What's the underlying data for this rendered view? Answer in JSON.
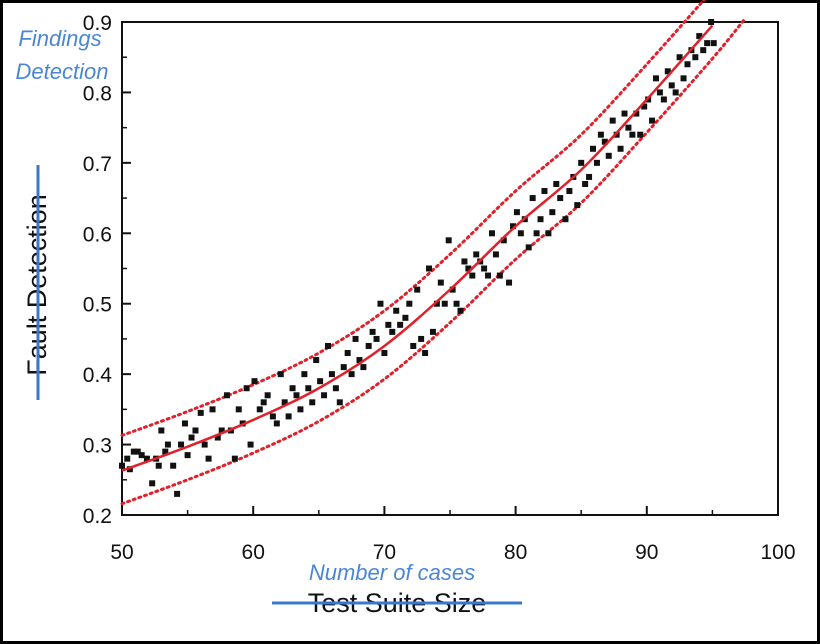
{
  "chart_data": {
    "type": "scatter",
    "xlabel": "Test Suite Size",
    "ylabel": "Fault Detection",
    "xlabel_annotation": "Number of cases",
    "ylabel_annotation": [
      "Findings",
      "Detection"
    ],
    "xlim": [
      50,
      100
    ],
    "ylim": [
      0.2,
      0.9
    ],
    "x_ticks": [
      "50",
      "60",
      "70",
      "80",
      "90",
      "100"
    ],
    "y_ticks": [
      "0.2",
      "0.3",
      "0.4",
      "0.5",
      "0.6",
      "0.7",
      "0.8",
      "0.9"
    ],
    "grid": false,
    "colors": {
      "points": "#111111",
      "fit": "#e0202a",
      "band": "#e0202a",
      "annotation": "#4a86d8",
      "strike": "#3a78d0"
    },
    "fit_curve": {
      "x": [
        50,
        55,
        60,
        65,
        70,
        75,
        80,
        85,
        90,
        95
      ],
      "y": [
        0.263,
        0.297,
        0.335,
        0.38,
        0.44,
        0.52,
        0.61,
        0.69,
        0.79,
        0.895
      ]
    },
    "upper_band": {
      "x": [
        50,
        55,
        60,
        65,
        70,
        75,
        80,
        85,
        90,
        95
      ],
      "y": [
        0.313,
        0.347,
        0.385,
        0.43,
        0.49,
        0.57,
        0.66,
        0.74,
        0.84,
        0.945
      ]
    },
    "lower_band": {
      "x": [
        50,
        55,
        60,
        65,
        70,
        75,
        80,
        85,
        90,
        95,
        97.5
      ],
      "y": [
        0.216,
        0.25,
        0.288,
        0.333,
        0.393,
        0.473,
        0.563,
        0.643,
        0.743,
        0.848,
        0.905
      ]
    },
    "points": [
      [
        50.0,
        0.27
      ],
      [
        50.4,
        0.28
      ],
      [
        50.6,
        0.265
      ],
      [
        50.9,
        0.29
      ],
      [
        51.2,
        0.29
      ],
      [
        51.5,
        0.285
      ],
      [
        51.9,
        0.28
      ],
      [
        52.3,
        0.245
      ],
      [
        52.6,
        0.28
      ],
      [
        52.8,
        0.27
      ],
      [
        53.0,
        0.32
      ],
      [
        53.3,
        0.29
      ],
      [
        53.5,
        0.3
      ],
      [
        53.9,
        0.27
      ],
      [
        54.2,
        0.23
      ],
      [
        54.5,
        0.3
      ],
      [
        54.8,
        0.33
      ],
      [
        55.0,
        0.285
      ],
      [
        55.3,
        0.31
      ],
      [
        55.6,
        0.32
      ],
      [
        56.0,
        0.345
      ],
      [
        56.3,
        0.3
      ],
      [
        56.6,
        0.28
      ],
      [
        56.9,
        0.35
      ],
      [
        57.3,
        0.31
      ],
      [
        57.6,
        0.32
      ],
      [
        58.0,
        0.37
      ],
      [
        58.3,
        0.32
      ],
      [
        58.6,
        0.28
      ],
      [
        58.9,
        0.35
      ],
      [
        59.2,
        0.33
      ],
      [
        59.5,
        0.38
      ],
      [
        59.8,
        0.3
      ],
      [
        60.1,
        0.39
      ],
      [
        60.5,
        0.35
      ],
      [
        60.8,
        0.36
      ],
      [
        61.1,
        0.37
      ],
      [
        61.5,
        0.34
      ],
      [
        61.8,
        0.33
      ],
      [
        62.1,
        0.4
      ],
      [
        62.4,
        0.36
      ],
      [
        62.7,
        0.34
      ],
      [
        63.0,
        0.38
      ],
      [
        63.3,
        0.37
      ],
      [
        63.6,
        0.35
      ],
      [
        63.9,
        0.4
      ],
      [
        64.2,
        0.38
      ],
      [
        64.5,
        0.36
      ],
      [
        64.8,
        0.42
      ],
      [
        65.1,
        0.39
      ],
      [
        65.4,
        0.37
      ],
      [
        65.7,
        0.44
      ],
      [
        66.0,
        0.4
      ],
      [
        66.3,
        0.38
      ],
      [
        66.6,
        0.36
      ],
      [
        66.9,
        0.41
      ],
      [
        67.2,
        0.43
      ],
      [
        67.5,
        0.4
      ],
      [
        67.8,
        0.45
      ],
      [
        68.1,
        0.42
      ],
      [
        68.4,
        0.41
      ],
      [
        68.8,
        0.44
      ],
      [
        69.1,
        0.46
      ],
      [
        69.4,
        0.45
      ],
      [
        69.7,
        0.5
      ],
      [
        70.0,
        0.43
      ],
      [
        70.3,
        0.47
      ],
      [
        70.6,
        0.46
      ],
      [
        70.9,
        0.49
      ],
      [
        71.2,
        0.47
      ],
      [
        71.6,
        0.48
      ],
      [
        71.9,
        0.5
      ],
      [
        72.2,
        0.44
      ],
      [
        72.5,
        0.52
      ],
      [
        72.8,
        0.45
      ],
      [
        73.1,
        0.43
      ],
      [
        73.4,
        0.55
      ],
      [
        73.7,
        0.46
      ],
      [
        74.0,
        0.5
      ],
      [
        74.3,
        0.53
      ],
      [
        74.6,
        0.5
      ],
      [
        74.9,
        0.59
      ],
      [
        75.2,
        0.52
      ],
      [
        75.5,
        0.5
      ],
      [
        75.8,
        0.49
      ],
      [
        76.1,
        0.56
      ],
      [
        76.4,
        0.55
      ],
      [
        76.7,
        0.54
      ],
      [
        77.0,
        0.57
      ],
      [
        77.3,
        0.56
      ],
      [
        77.6,
        0.55
      ],
      [
        77.9,
        0.54
      ],
      [
        78.2,
        0.6
      ],
      [
        78.5,
        0.57
      ],
      [
        78.8,
        0.54
      ],
      [
        79.1,
        0.59
      ],
      [
        79.5,
        0.53
      ],
      [
        79.8,
        0.61
      ],
      [
        80.1,
        0.63
      ],
      [
        80.4,
        0.6
      ],
      [
        80.7,
        0.62
      ],
      [
        81.0,
        0.58
      ],
      [
        81.3,
        0.65
      ],
      [
        81.6,
        0.6
      ],
      [
        81.9,
        0.62
      ],
      [
        82.2,
        0.66
      ],
      [
        82.5,
        0.6
      ],
      [
        82.8,
        0.63
      ],
      [
        83.1,
        0.67
      ],
      [
        83.4,
        0.65
      ],
      [
        83.8,
        0.62
      ],
      [
        84.1,
        0.66
      ],
      [
        84.4,
        0.68
      ],
      [
        84.7,
        0.64
      ],
      [
        85.0,
        0.7
      ],
      [
        85.3,
        0.67
      ],
      [
        85.6,
        0.68
      ],
      [
        85.9,
        0.72
      ],
      [
        86.2,
        0.7
      ],
      [
        86.5,
        0.74
      ],
      [
        86.8,
        0.73
      ],
      [
        87.1,
        0.71
      ],
      [
        87.4,
        0.76
      ],
      [
        87.7,
        0.74
      ],
      [
        88.0,
        0.72
      ],
      [
        88.3,
        0.77
      ],
      [
        88.6,
        0.75
      ],
      [
        88.9,
        0.74
      ],
      [
        89.2,
        0.77
      ],
      [
        89.5,
        0.74
      ],
      [
        89.8,
        0.78
      ],
      [
        90.1,
        0.79
      ],
      [
        90.4,
        0.76
      ],
      [
        90.7,
        0.82
      ],
      [
        91.0,
        0.8
      ],
      [
        91.3,
        0.79
      ],
      [
        91.6,
        0.83
      ],
      [
        91.9,
        0.81
      ],
      [
        92.2,
        0.8
      ],
      [
        92.5,
        0.85
      ],
      [
        92.8,
        0.82
      ],
      [
        93.1,
        0.84
      ],
      [
        93.4,
        0.86
      ],
      [
        93.7,
        0.85
      ],
      [
        94.0,
        0.88
      ],
      [
        94.3,
        0.86
      ],
      [
        94.6,
        0.87
      ],
      [
        94.9,
        0.9
      ],
      [
        95.1,
        0.87
      ]
    ]
  }
}
